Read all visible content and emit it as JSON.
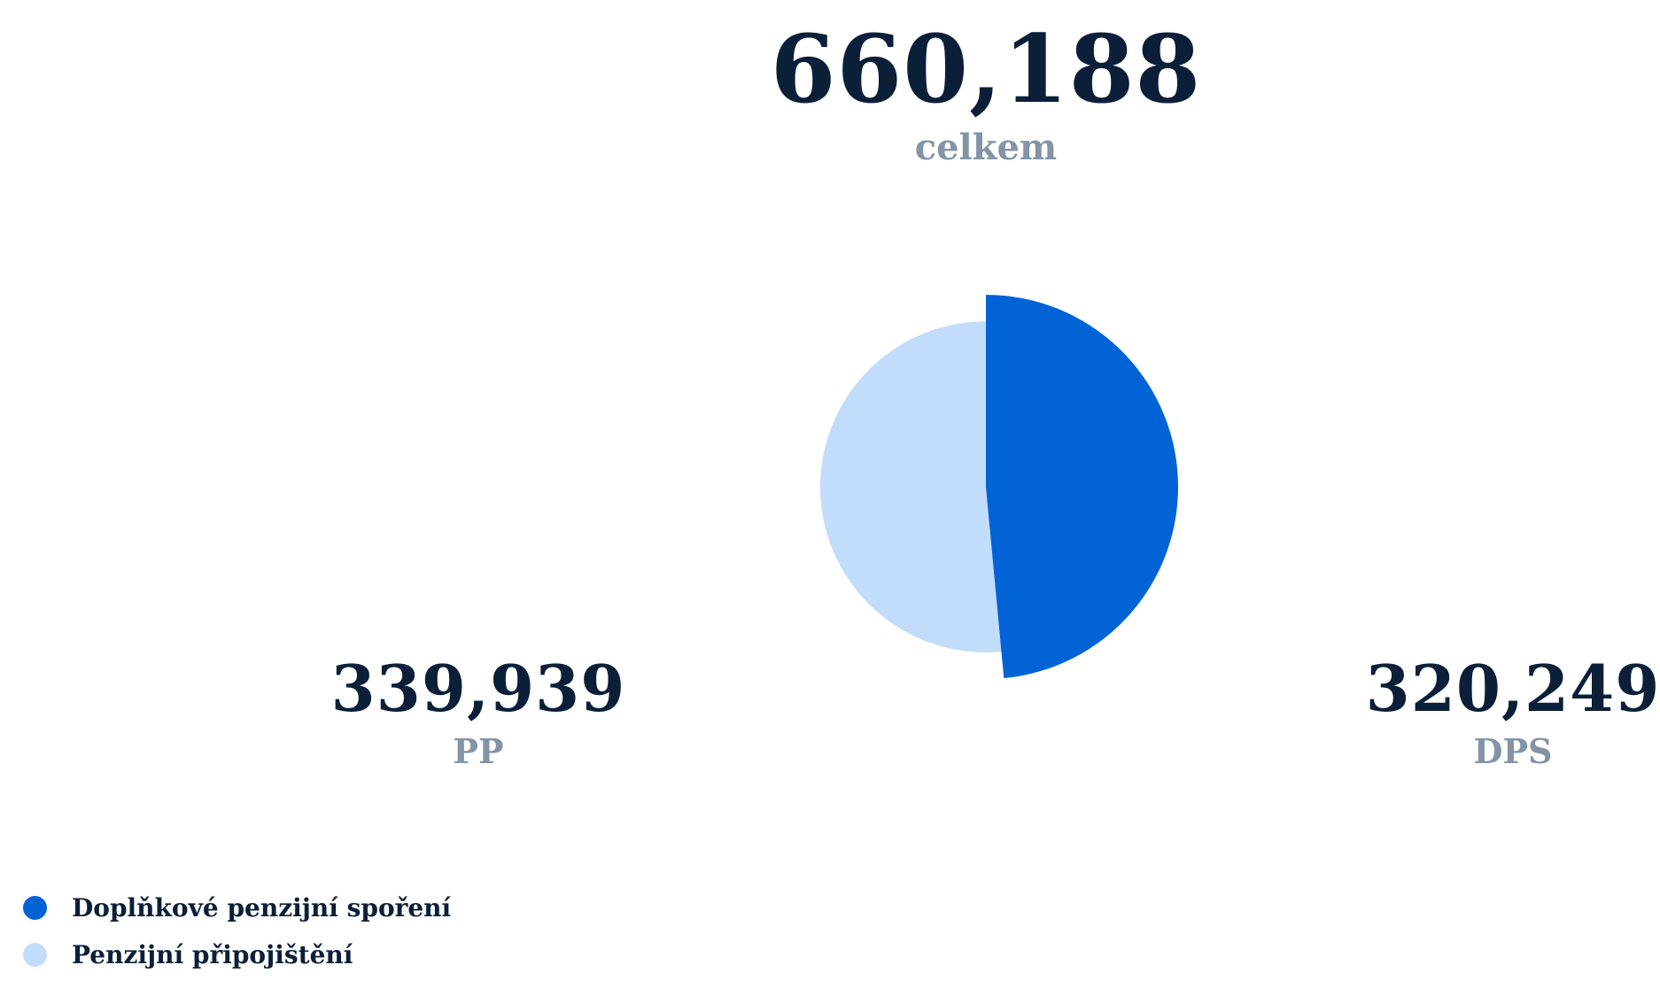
{
  "chart_data": {
    "type": "pie",
    "total": {
      "value": "660,188",
      "label": "celkem"
    },
    "series": [
      {
        "name": "Doplňkové penzijní spoření",
        "short": "DPS",
        "value": 320249,
        "display": "320,249",
        "color": "#0263d6"
      },
      {
        "name": "Penzijní připojištění",
        "short": "PP",
        "value": 339939,
        "display": "339,939",
        "color": "#c2dcfb"
      }
    ]
  },
  "legend": {
    "items": [
      {
        "label": "Doplňkové penzijní spoření",
        "color": "#0263d6"
      },
      {
        "label": "Penzijní připojištění",
        "color": "#c2dcfb"
      }
    ]
  }
}
